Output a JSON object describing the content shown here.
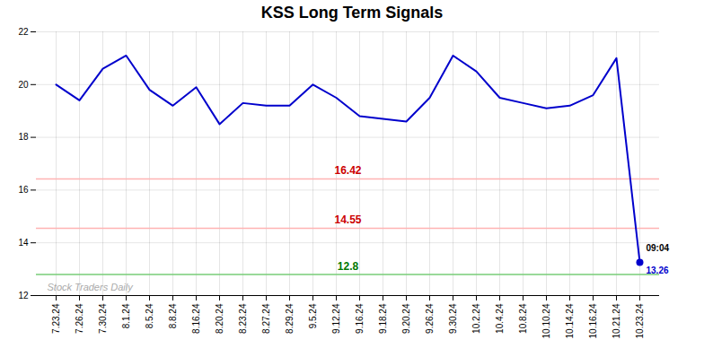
{
  "chart_data": {
    "type": "line",
    "title": "KSS Long Term Signals",
    "categories": [
      "7.23.24",
      "7.26.24",
      "7.30.24",
      "8.1.24",
      "8.5.24",
      "8.8.24",
      "8.16.24",
      "8.20.24",
      "8.23.24",
      "8.27.24",
      "8.29.24",
      "9.5.24",
      "9.12.24",
      "9.16.24",
      "9.18.24",
      "9.20.24",
      "9.26.24",
      "9.30.24",
      "10.2.24",
      "10.4.24",
      "10.8.24",
      "10.10.24",
      "10.14.24",
      "10.16.24",
      "10.21.24",
      "10.23.24"
    ],
    "values": [
      20.0,
      19.4,
      20.6,
      21.1,
      19.8,
      19.2,
      19.9,
      18.5,
      19.3,
      19.2,
      19.2,
      20.0,
      19.5,
      18.8,
      18.7,
      18.6,
      19.5,
      21.1,
      20.5,
      19.5,
      19.3,
      19.1,
      19.2,
      19.6,
      21.0,
      13.26
    ],
    "color": "#0000cc",
    "marker": "end",
    "ylim": [
      12,
      22
    ],
    "yticks": [
      12,
      14,
      16,
      18,
      20,
      22
    ],
    "grid": true,
    "reference_lines": [
      {
        "value": 16.42,
        "label": "16.42",
        "color": "#ffb3b3",
        "label_color": "#cc0000"
      },
      {
        "value": 14.55,
        "label": "14.55",
        "color": "#ffb3b3",
        "label_color": "#cc0000"
      },
      {
        "value": 12.8,
        "label": "12.8",
        "color": "#77cc77",
        "label_color": "#007700"
      }
    ],
    "end_annotations": [
      {
        "text": "09:04",
        "color": "#000000"
      },
      {
        "text": "13.26",
        "color": "#0000cc"
      }
    ],
    "watermark": {
      "text": "Stock Traders Daily",
      "color": "#aaaaaa"
    }
  }
}
